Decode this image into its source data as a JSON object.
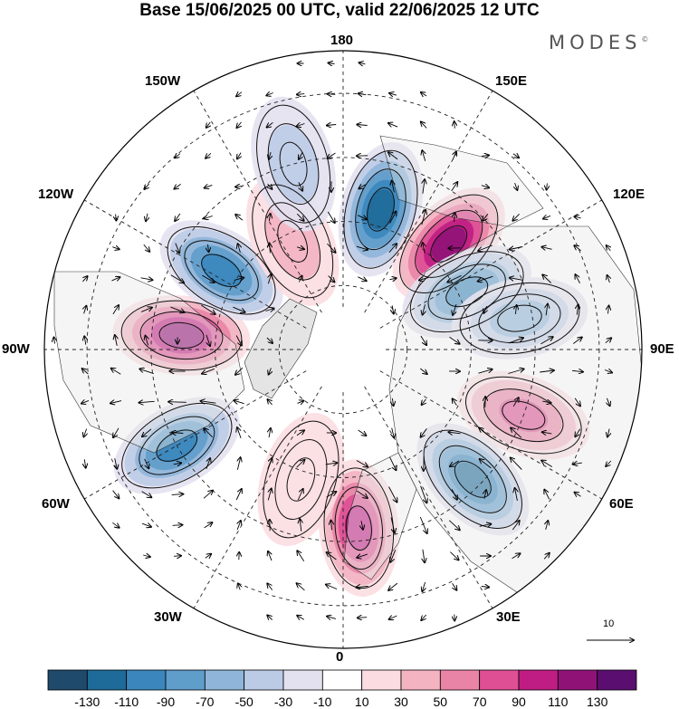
{
  "title": "Base 15/06/2025 00 UTC, valid 22/06/2025 12 UTC",
  "logo": {
    "text": "MODES",
    "mark": "©"
  },
  "longitude_labels": {
    "n180": "180",
    "e150": "150E",
    "e120": "120E",
    "e90": "90E",
    "e60": "60E",
    "e30": "30E",
    "n0": "0",
    "w30": "30W",
    "w60": "60W",
    "w90": "90W",
    "w120": "120W",
    "w150": "150W"
  },
  "vector_scale_label": "10",
  "colorbar": {
    "tick_labels": [
      "-130",
      "-110",
      "-90",
      "-70",
      "-50",
      "-30",
      "-10",
      "10",
      "30",
      "50",
      "70",
      "90",
      "110",
      "130"
    ],
    "colors": [
      "#1f4a6b",
      "#1e6a98",
      "#3a86bd",
      "#5f9dcb",
      "#8fb6d9",
      "#bccbe5",
      "#e3e1ef",
      "#ffffff",
      "#fbdde1",
      "#f3b3c1",
      "#ea84a6",
      "#de4f94",
      "#bf1d83",
      "#8f1377",
      "#5a0e6f"
    ]
  },
  "anomaly_centers": [
    {
      "lon": 165,
      "lat": 56,
      "value": -110
    },
    {
      "lon": 135,
      "lat": 55,
      "value": 110
    },
    {
      "lon": 115,
      "lat": 58,
      "value": -100
    },
    {
      "lon": 100,
      "lat": 48,
      "value": -60
    },
    {
      "lon": 70,
      "lat": 45,
      "value": 80
    },
    {
      "lon": 45,
      "lat": 47,
      "value": -110
    },
    {
      "lon": 5,
      "lat": 48,
      "value": 100
    },
    {
      "lon": -18,
      "lat": 58,
      "value": 20
    },
    {
      "lon": -60,
      "lat": 45,
      "value": -90
    },
    {
      "lon": -95,
      "lat": 52,
      "value": 110
    },
    {
      "lon": -123,
      "lat": 56,
      "value": -90
    },
    {
      "lon": -155,
      "lat": 62,
      "value": 40
    },
    {
      "lon": -165,
      "lat": 45,
      "value": -30
    }
  ]
}
